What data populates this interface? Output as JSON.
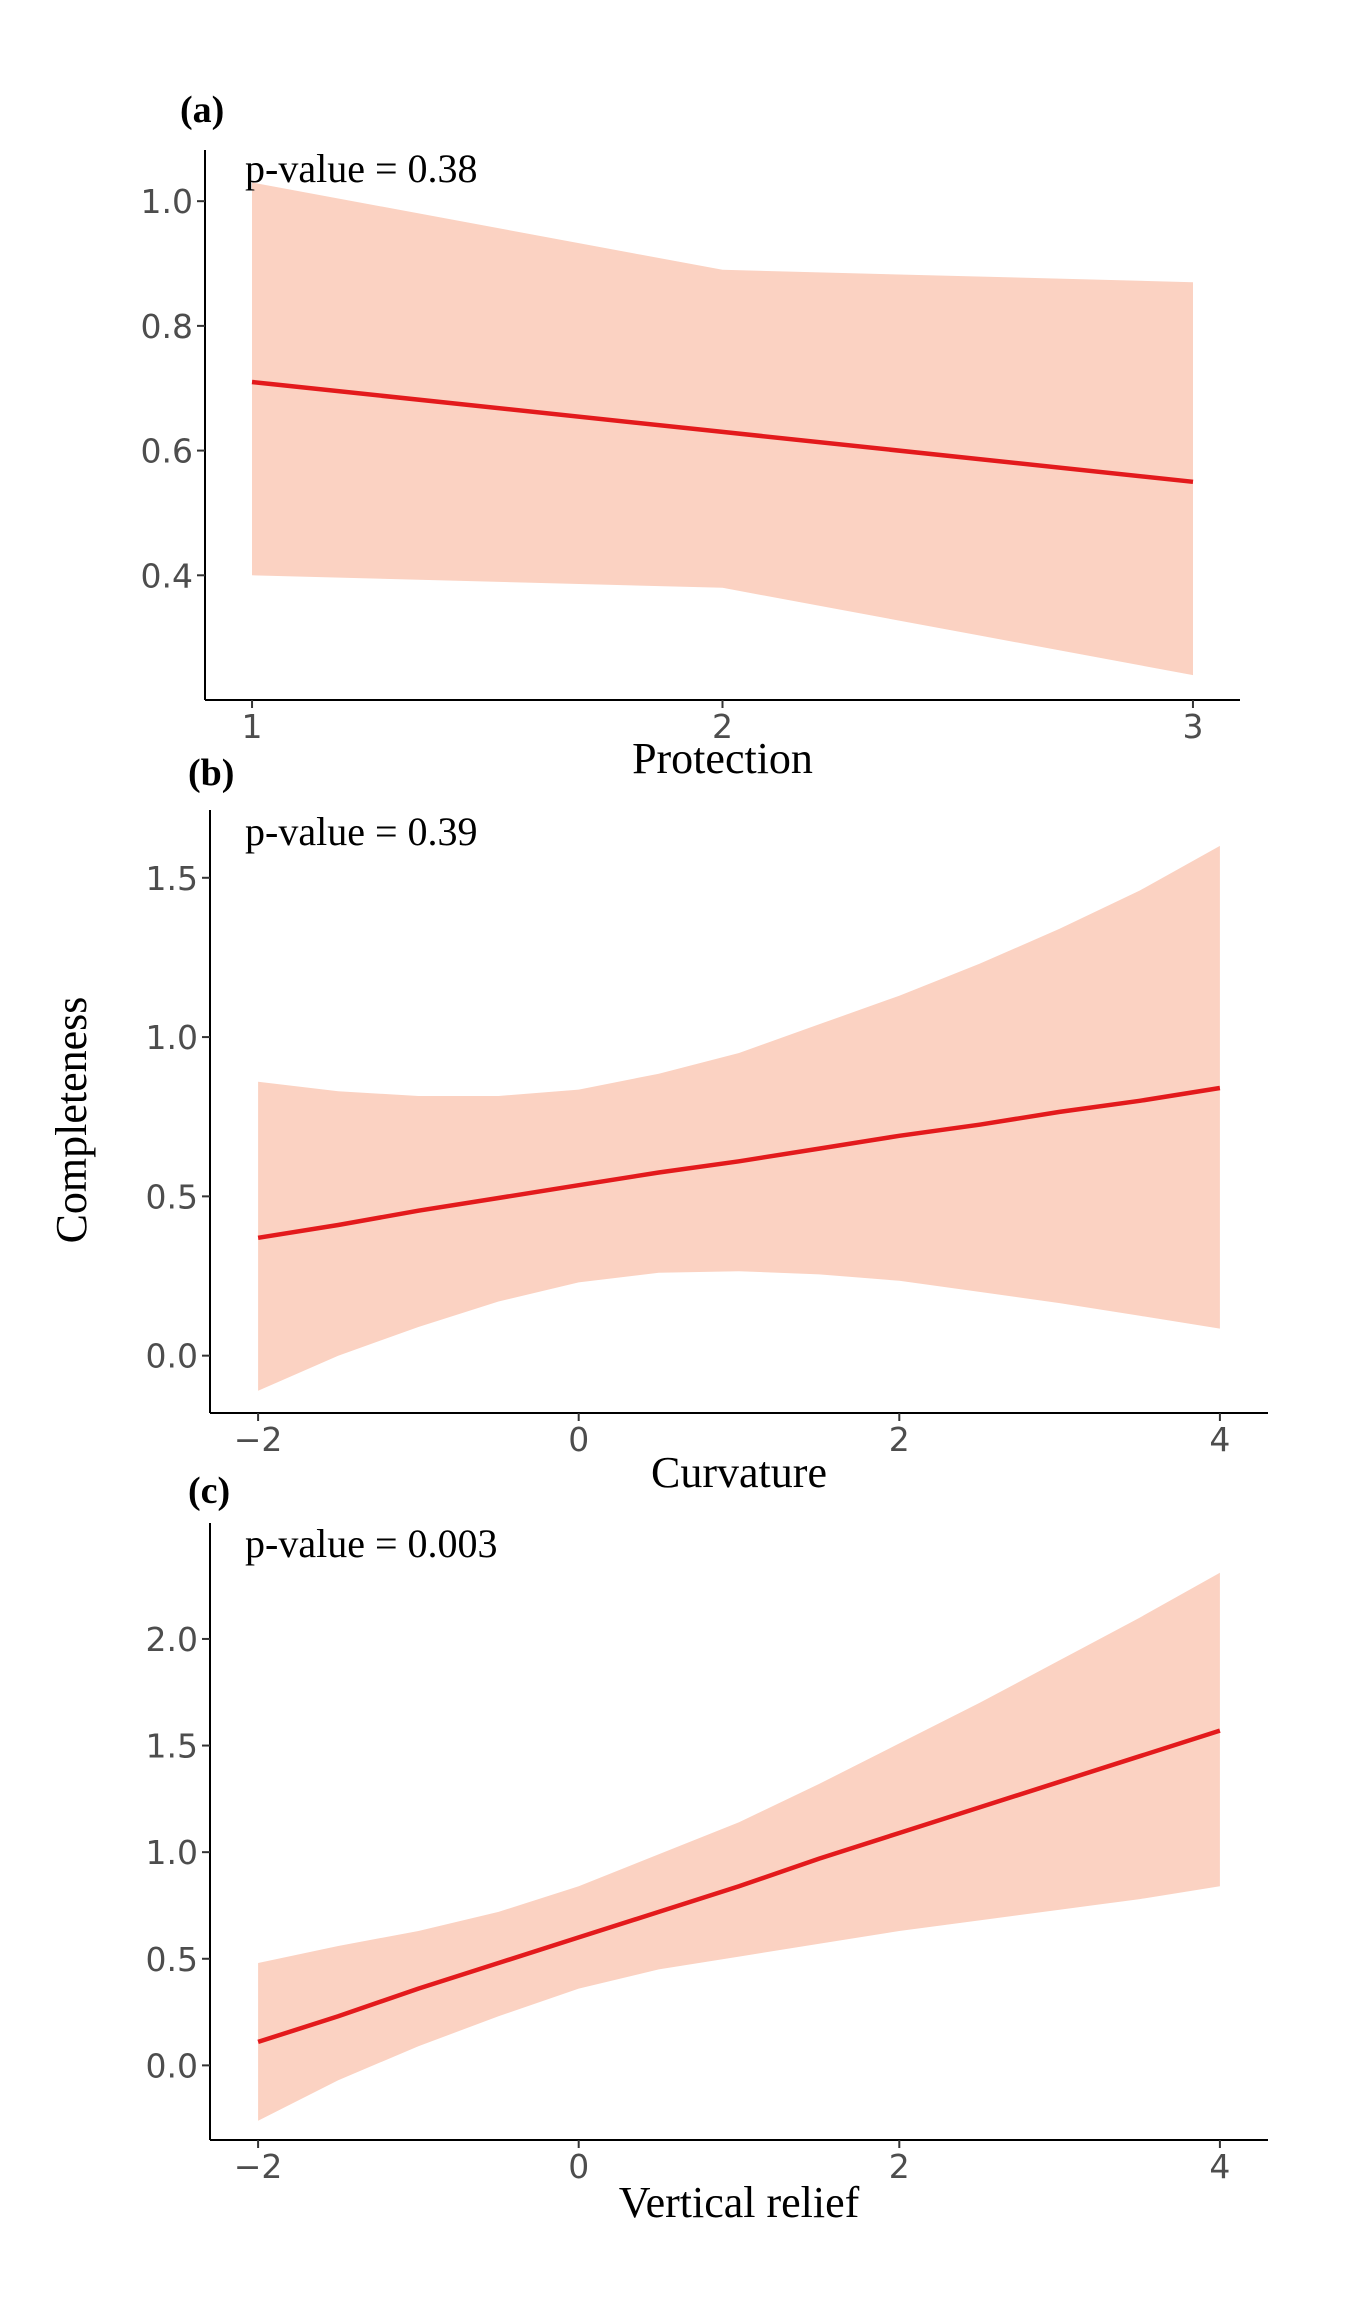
{
  "y_axis_title": "Completeness",
  "chart_data": [
    {
      "type": "line",
      "panel_label": "(a)",
      "annotation": "p-value = 0.38",
      "xlabel": "Protection",
      "ylabel": "Completeness",
      "xlim": [
        0.9,
        3.1
      ],
      "ylim": [
        0.2,
        1.05
      ],
      "x_ticks": [
        1,
        2,
        3
      ],
      "x_tick_labels": [
        "1",
        "2",
        "3"
      ],
      "y_ticks": [
        0.4,
        0.6,
        0.8,
        1.0
      ],
      "y_tick_labels": [
        "0.4",
        "0.6",
        "0.8",
        "1.0"
      ],
      "grid": false,
      "series": [
        {
          "x": [
            1,
            2,
            3
          ],
          "fit": [
            0.71,
            0.63,
            0.55
          ],
          "lower": [
            0.4,
            0.38,
            0.24
          ],
          "upper": [
            1.03,
            0.89,
            0.87
          ],
          "color": "#e31a1c",
          "band_color": "#fbd2c2"
        }
      ]
    },
    {
      "type": "line",
      "panel_label": "(b)",
      "annotation": "p-value = 0.39",
      "xlabel": "Curvature",
      "ylabel": "Completeness",
      "xlim": [
        -2.3,
        4.3
      ],
      "ylim": [
        -0.18,
        1.65
      ],
      "x_ticks": [
        -2,
        0,
        2,
        4
      ],
      "x_tick_labels": [
        "−2",
        "0",
        "2",
        "4"
      ],
      "y_ticks": [
        0.0,
        0.5,
        1.0,
        1.5
      ],
      "y_tick_labels": [
        "0.0",
        "0.5",
        "1.0",
        "1.5"
      ],
      "grid": false,
      "series": [
        {
          "x": [
            -2,
            -1.5,
            -1,
            -0.5,
            0,
            0.5,
            1,
            1.5,
            2,
            2.5,
            3,
            3.5,
            4
          ],
          "fit": [
            0.37,
            0.41,
            0.455,
            0.495,
            0.535,
            0.575,
            0.61,
            0.65,
            0.69,
            0.725,
            0.765,
            0.8,
            0.84
          ],
          "lower": [
            -0.11,
            0.0,
            0.09,
            0.17,
            0.23,
            0.26,
            0.265,
            0.255,
            0.235,
            0.2,
            0.165,
            0.125,
            0.085
          ],
          "upper": [
            0.86,
            0.83,
            0.815,
            0.815,
            0.835,
            0.885,
            0.95,
            1.04,
            1.13,
            1.23,
            1.34,
            1.46,
            1.6
          ],
          "color": "#e31a1c",
          "band_color": "#fbd2c2"
        }
      ]
    },
    {
      "type": "line",
      "panel_label": "(c)",
      "annotation": "p-value = 0.003",
      "xlabel": "Vertical relief",
      "ylabel": "Completeness",
      "xlim": [
        -2.3,
        4.3
      ],
      "ylim": [
        -0.35,
        2.45
      ],
      "x_ticks": [
        -2,
        0,
        2,
        4
      ],
      "x_tick_labels": [
        "−2",
        "0",
        "2",
        "4"
      ],
      "y_ticks": [
        0.0,
        0.5,
        1.0,
        1.5,
        2.0
      ],
      "y_tick_labels": [
        "0.0",
        "0.5",
        "1.0",
        "1.5",
        "2.0"
      ],
      "grid": false,
      "series": [
        {
          "x": [
            -2,
            -1.5,
            -1,
            -0.5,
            0,
            0.5,
            1,
            1.5,
            2,
            2.5,
            3,
            3.5,
            4
          ],
          "fit": [
            0.11,
            0.23,
            0.36,
            0.48,
            0.6,
            0.72,
            0.84,
            0.97,
            1.09,
            1.21,
            1.33,
            1.45,
            1.57
          ],
          "lower": [
            -0.26,
            -0.07,
            0.09,
            0.23,
            0.36,
            0.45,
            0.51,
            0.57,
            0.63,
            0.68,
            0.73,
            0.78,
            0.84
          ],
          "upper": [
            0.48,
            0.56,
            0.63,
            0.72,
            0.84,
            0.99,
            1.14,
            1.32,
            1.51,
            1.7,
            1.9,
            2.1,
            2.31
          ],
          "color": "#e31a1c",
          "band_color": "#fbd2c2"
        }
      ]
    }
  ]
}
